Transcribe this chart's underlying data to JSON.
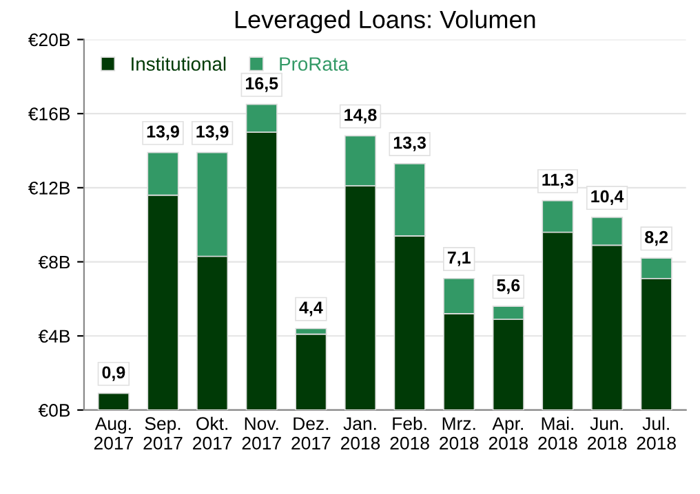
{
  "chart_data": {
    "type": "bar",
    "title": "Leveraged Loans: Volumen",
    "stacked": true,
    "categories": [
      "Aug.\n2017",
      "Sep.\n2017",
      "Okt.\n2017",
      "Nov.\n2017",
      "Dez.\n2017",
      "Jan.\n2018",
      "Feb.\n2018",
      "Mrz.\n2018",
      "Apr.\n2018",
      "Mai.\n2018",
      "Jun.\n2018",
      "Jul.\n2018"
    ],
    "series": [
      {
        "name": "Institutional",
        "color": "#003a06",
        "values": [
          0.9,
          11.6,
          8.3,
          15.0,
          4.1,
          12.1,
          9.4,
          5.2,
          4.9,
          9.6,
          8.9,
          7.1
        ]
      },
      {
        "name": "ProRata",
        "color": "#339966",
        "values": [
          null,
          2.3,
          5.6,
          1.5,
          0.3,
          2.7,
          3.9,
          1.9,
          0.7,
          1.7,
          1.5,
          1.1
        ]
      }
    ],
    "totals": [
      "0,9",
      "13,9",
      "13,9",
      "16,5",
      "4,4",
      "14,8",
      "13,3",
      "7,1",
      "5,6",
      "11,3",
      "10,4",
      "8,2"
    ],
    "ylim": [
      0,
      20
    ],
    "yticks": [
      {
        "value": 0,
        "label": "€0B"
      },
      {
        "value": 4,
        "label": "€4B"
      },
      {
        "value": 8,
        "label": "€8B"
      },
      {
        "value": 12,
        "label": "€12B"
      },
      {
        "value": 16,
        "label": "€16B"
      },
      {
        "value": 20,
        "label": "€20B"
      }
    ],
    "grid": "y",
    "legend": "top left"
  }
}
